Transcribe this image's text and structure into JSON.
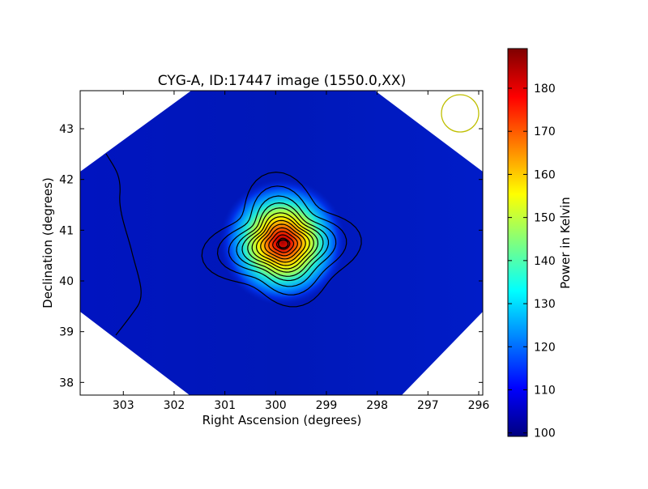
{
  "chart_data": {
    "type": "heatmap",
    "title": "CYG-A, ID:17447 image (1550.0,XX)",
    "xlabel": "Right Ascension (degrees)",
    "ylabel": "Declination (degrees)",
    "xlim": [
      303.85,
      295.92
    ],
    "ylim": [
      37.75,
      43.75
    ],
    "x_ticks": [
      "303",
      "302",
      "301",
      "300",
      "299",
      "298",
      "297",
      "296"
    ],
    "y_ticks": [
      "38",
      "39",
      "40",
      "41",
      "42",
      "43"
    ],
    "colorbar": {
      "label": "Power in Kelvin",
      "range": [
        99.2,
        189.2
      ],
      "ticks": [
        "100",
        "110",
        "120",
        "130",
        "140",
        "150",
        "160",
        "170",
        "180"
      ],
      "colormap": "jet"
    },
    "source": {
      "ra": 299.85,
      "dec": 40.73,
      "peak_kelvin": 189,
      "background_kelvin": 106
    },
    "grid": false,
    "legend": "none",
    "beam_color": "#bfbf00",
    "contour_color": "#000000"
  }
}
